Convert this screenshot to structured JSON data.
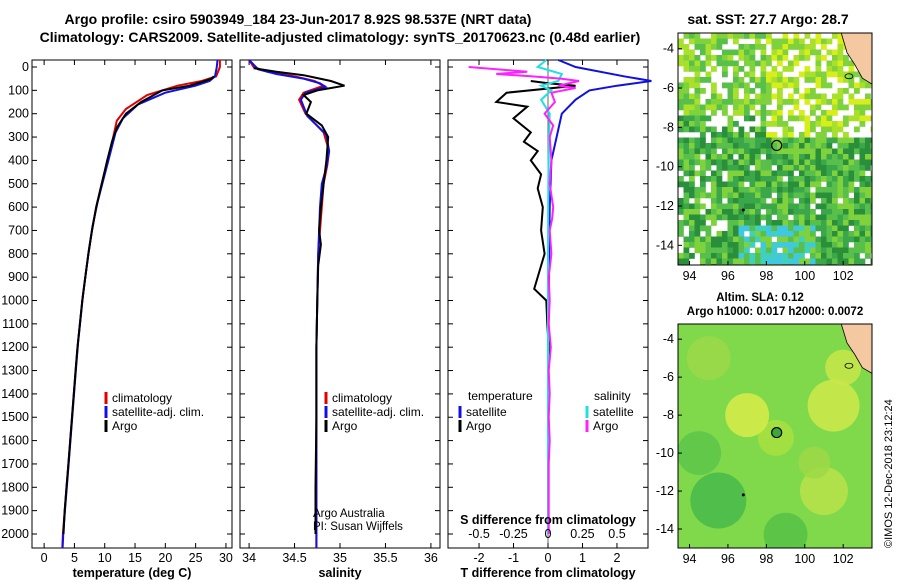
{
  "title_line1": "Argo profile: csiro 5903949_184 23-Jun-2017 8.92S 98.537E (NRT data)",
  "title_line2": "Climatology: CARS2009. Satellite-adjusted climatology: synTS_20170623.nc (0.48d earlier)",
  "colors": {
    "climatology": "#e00000",
    "satellite": "#1010e0",
    "argo": "#000000",
    "sat_salinity": "#20e0e0",
    "argo_salinity": "#ff20ff"
  },
  "chart_data": [
    {
      "type": "line",
      "name": "temperature-profile",
      "xlabel": "temperature (deg C)",
      "xlim": [
        -2,
        31
      ],
      "ylim": [
        2060,
        -30
      ],
      "xticks": [
        0,
        5,
        10,
        15,
        20,
        25,
        30
      ],
      "yticks": [
        0,
        100,
        200,
        300,
        400,
        500,
        600,
        700,
        800,
        900,
        1000,
        1100,
        1200,
        1300,
        1400,
        1500,
        1600,
        1700,
        1800,
        1900,
        2000
      ],
      "legend": [
        "climatology",
        "satellite-adj. clim.",
        "Argo"
      ],
      "series": [
        {
          "name": "climatology",
          "color_key": "climatology",
          "points": [
            [
              29,
              -30
            ],
            [
              29,
              0
            ],
            [
              28.4,
              40
            ],
            [
              26,
              60
            ],
            [
              22,
              80
            ],
            [
              17,
              120
            ],
            [
              13.5,
              180
            ],
            [
              12,
              230
            ],
            [
              11.4,
              300
            ],
            [
              10.5,
              400
            ],
            [
              9.5,
              500
            ],
            [
              8.6,
              600
            ],
            [
              7.9,
              700
            ],
            [
              7.3,
              800
            ],
            [
              6.8,
              900
            ],
            [
              6.3,
              1000
            ],
            [
              5.9,
              1100
            ],
            [
              5.5,
              1200
            ],
            [
              5.2,
              1300
            ],
            [
              4.9,
              1400
            ],
            [
              4.6,
              1500
            ],
            [
              4.3,
              1600
            ],
            [
              4.0,
              1700
            ],
            [
              3.7,
              1800
            ],
            [
              3.4,
              1900
            ],
            [
              3.1,
              2000
            ],
            [
              3.0,
              2060
            ]
          ]
        },
        {
          "name": "satellite-adj. clim.",
          "color_key": "satellite",
          "points": [
            [
              28.6,
              -30
            ],
            [
              28.5,
              0
            ],
            [
              28.2,
              40
            ],
            [
              27.3,
              60
            ],
            [
              25,
              80
            ],
            [
              20,
              110
            ],
            [
              15.5,
              160
            ],
            [
              13,
              220
            ],
            [
              11.8,
              280
            ],
            [
              10.8,
              380
            ],
            [
              9.8,
              480
            ],
            [
              8.8,
              580
            ],
            [
              8,
              680
            ],
            [
              7.4,
              780
            ],
            [
              6.9,
              880
            ],
            [
              6.4,
              980
            ],
            [
              6,
              1080
            ],
            [
              5.6,
              1180
            ],
            [
              5.3,
              1280
            ],
            [
              5,
              1380
            ],
            [
              4.7,
              1480
            ],
            [
              4.4,
              1580
            ],
            [
              4.1,
              1680
            ],
            [
              3.8,
              1780
            ],
            [
              3.5,
              1880
            ],
            [
              3.2,
              1980
            ],
            [
              3.05,
              2060
            ]
          ]
        },
        {
          "name": "Argo",
          "color_key": "argo",
          "points": [
            [
              28,
              40
            ],
            [
              27.6,
              50
            ],
            [
              26.5,
              60
            ],
            [
              24,
              80
            ],
            [
              19.5,
              100
            ],
            [
              16,
              150
            ],
            [
              13.5,
              200
            ],
            [
              12,
              260
            ],
            [
              11.2,
              320
            ],
            [
              10.4,
              400
            ],
            [
              9.5,
              500
            ],
            [
              8.6,
              600
            ],
            [
              7.9,
              700
            ],
            [
              7.3,
              800
            ],
            [
              6.8,
              900
            ],
            [
              6.3,
              1000
            ],
            [
              5.9,
              1100
            ],
            [
              5.5,
              1200
            ],
            [
              5.2,
              1300
            ],
            [
              4.9,
              1400
            ],
            [
              4.6,
              1500
            ],
            [
              4.3,
              1600
            ],
            [
              4.0,
              1700
            ],
            [
              3.7,
              1800
            ],
            [
              3.4,
              1900
            ],
            [
              3.2,
              2000
            ]
          ]
        }
      ]
    },
    {
      "type": "line",
      "name": "salinity-profile",
      "xlabel": "salinity",
      "xlim": [
        33.9,
        36.1
      ],
      "ylim": [
        2060,
        -30
      ],
      "xticks": [
        34,
        34.5,
        35,
        35.5,
        36
      ],
      "legend": [
        "climatology",
        "satellite-adj. clim.",
        "Argo"
      ],
      "annotation": [
        "Argo Australia",
        "PI: Susan Wijffels"
      ],
      "series": [
        {
          "name": "climatology",
          "color_key": "climatology",
          "points": [
            [
              34,
              -30
            ],
            [
              34.05,
              0
            ],
            [
              34.2,
              20
            ],
            [
              34.5,
              40
            ],
            [
              34.72,
              60
            ],
            [
              34.82,
              80
            ],
            [
              34.6,
              110
            ],
            [
              34.55,
              140
            ],
            [
              34.62,
              200
            ],
            [
              34.82,
              280
            ],
            [
              34.88,
              360
            ],
            [
              34.86,
              420
            ],
            [
              34.82,
              500
            ],
            [
              34.8,
              600
            ],
            [
              34.78,
              700
            ],
            [
              34.76,
              800
            ],
            [
              34.75,
              1000
            ],
            [
              34.74,
              1200
            ],
            [
              34.74,
              1500
            ],
            [
              34.74,
              1800
            ],
            [
              34.74,
              2060
            ]
          ]
        },
        {
          "name": "satellite-adj. clim.",
          "color_key": "satellite",
          "points": [
            [
              34.0,
              -30
            ],
            [
              34.1,
              10
            ],
            [
              34.3,
              30
            ],
            [
              34.6,
              50
            ],
            [
              34.78,
              70
            ],
            [
              34.84,
              85
            ],
            [
              34.62,
              110
            ],
            [
              34.57,
              140
            ],
            [
              34.64,
              210
            ],
            [
              34.85,
              290
            ],
            [
              34.88,
              360
            ],
            [
              34.85,
              430
            ],
            [
              34.8,
              500
            ],
            [
              34.78,
              600
            ],
            [
              34.77,
              700
            ],
            [
              34.76,
              800
            ],
            [
              34.75,
              1000
            ],
            [
              34.74,
              1200
            ],
            [
              34.74,
              1500
            ],
            [
              34.74,
              1800
            ],
            [
              34.74,
              2060
            ]
          ]
        },
        {
          "name": "Argo",
          "color_key": "argo",
          "points": [
            [
              34.05,
              5
            ],
            [
              34.3,
              20
            ],
            [
              34.6,
              35
            ],
            [
              34.72,
              45
            ],
            [
              34.9,
              60
            ],
            [
              35.05,
              80
            ],
            [
              34.75,
              100
            ],
            [
              34.6,
              120
            ],
            [
              34.68,
              150
            ],
            [
              34.63,
              200
            ],
            [
              34.8,
              250
            ],
            [
              34.87,
              300
            ],
            [
              34.85,
              400
            ],
            [
              34.82,
              500
            ],
            [
              34.79,
              600
            ],
            [
              34.77,
              700
            ],
            [
              34.79,
              760
            ],
            [
              34.76,
              850
            ],
            [
              34.75,
              1000
            ],
            [
              34.74,
              1200
            ],
            [
              34.74,
              1500
            ],
            [
              34.73,
              1800
            ],
            [
              34.73,
              2000
            ]
          ]
        }
      ]
    },
    {
      "type": "line",
      "name": "difference-profile",
      "xlabel": "T difference from climatology",
      "xlabel_top": "S difference from climatology",
      "xlim": [
        -2.9,
        2.9
      ],
      "ylim": [
        2060,
        -30
      ],
      "xticks": [
        -2,
        -1,
        0,
        1,
        2
      ],
      "xticks_top": [
        "-0.5",
        "-0.25",
        "0",
        "0.25",
        "0.5"
      ],
      "xticks_top_values": [
        -0.5,
        -0.25,
        0,
        0.25,
        0.5
      ],
      "legend_left_title": "temperature",
      "legend_right_title": "salinity",
      "legend": [
        "satellite",
        "Argo"
      ],
      "series": [
        {
          "name": "T satellite",
          "color_key": "satellite",
          "points": [
            [
              0.3,
              -30
            ],
            [
              0.8,
              0
            ],
            [
              2.2,
              40
            ],
            [
              3,
              60
            ],
            [
              2,
              80
            ],
            [
              1.2,
              100
            ],
            [
              0.8,
              140
            ],
            [
              0.4,
              200
            ],
            [
              0.25,
              300
            ],
            [
              0.1,
              400
            ],
            [
              0.05,
              600
            ],
            [
              0.02,
              1000
            ],
            [
              0,
              1500
            ],
            [
              0,
              2000
            ]
          ]
        },
        {
          "name": "T Argo",
          "color_key": "argo",
          "points": [
            [
              -0.5,
              60
            ],
            [
              0,
              70
            ],
            [
              0.8,
              80
            ],
            [
              -1.2,
              110
            ],
            [
              -1.5,
              150
            ],
            [
              -0.6,
              170
            ],
            [
              -1,
              220
            ],
            [
              -0.5,
              280
            ],
            [
              -0.7,
              320
            ],
            [
              -0.3,
              360
            ],
            [
              -0.5,
              400
            ],
            [
              -0.2,
              460
            ],
            [
              -0.3,
              520
            ],
            [
              -0.15,
              600
            ],
            [
              -0.2,
              700
            ],
            [
              -0.1,
              800
            ],
            [
              -0.3,
              900
            ],
            [
              -0.4,
              950
            ],
            [
              -0.05,
              1000
            ],
            [
              -0.02,
              1100
            ],
            [
              0.02,
              1200
            ],
            [
              0,
              1300
            ],
            [
              0,
              1500
            ],
            [
              0,
              1700
            ],
            [
              0,
              2000
            ]
          ]
        },
        {
          "name": "S satellite",
          "color_key": "sat_salinity",
          "points": [
            [
              -0.05,
              -30
            ],
            [
              -0.3,
              0
            ],
            [
              0.4,
              30
            ],
            [
              0.3,
              60
            ],
            [
              -0.2,
              80
            ],
            [
              0.1,
              100
            ],
            [
              -0.2,
              140
            ],
            [
              0.05,
              200
            ],
            [
              0.03,
              300
            ],
            [
              0.01,
              500
            ],
            [
              0,
              800
            ],
            [
              0,
              1200
            ],
            [
              0,
              2000
            ]
          ]
        },
        {
          "name": "S Argo",
          "color_key": "argo_salinity",
          "points": [
            [
              -2.3,
              0
            ],
            [
              -0.6,
              20
            ],
            [
              -1.5,
              30
            ],
            [
              -0.5,
              40
            ],
            [
              0.4,
              50
            ],
            [
              0.9,
              60
            ],
            [
              0.3,
              80
            ],
            [
              0.8,
              90
            ],
            [
              0.1,
              110
            ],
            [
              0.2,
              150
            ],
            [
              -0.1,
              200
            ],
            [
              0.15,
              250
            ],
            [
              0.05,
              300
            ],
            [
              0.1,
              400
            ],
            [
              0.05,
              500
            ],
            [
              0.15,
              600
            ],
            [
              0.12,
              650
            ],
            [
              0.05,
              700
            ],
            [
              0.1,
              800
            ],
            [
              0.02,
              900
            ],
            [
              0.05,
              1000
            ],
            [
              0.02,
              1100
            ],
            [
              0.08,
              1200
            ],
            [
              0.02,
              1300
            ],
            [
              0.05,
              1400
            ],
            [
              0.02,
              1500
            ],
            [
              0.05,
              1600
            ],
            [
              0.02,
              1700
            ],
            [
              0.02,
              2000
            ]
          ]
        }
      ]
    },
    {
      "type": "heatmap",
      "name": "sst-map",
      "title": "sat. SST: 27.7 Argo: 28.7",
      "xlim": [
        93.4,
        103.5
      ],
      "ylim": [
        -15,
        -3.2
      ],
      "xticks": [
        94,
        96,
        98,
        100,
        102
      ],
      "yticks": [
        -4,
        -6,
        -8,
        -10,
        -12,
        -14
      ],
      "marker": {
        "lon": 98.537,
        "lat": -8.92
      }
    },
    {
      "type": "heatmap",
      "name": "sla-map",
      "title": "Altim. SLA: 0.12",
      "subtitle": "Argo h1000: 0.017 h2000: 0.0072",
      "xlim": [
        93.4,
        103.5
      ],
      "ylim": [
        -15,
        -3.2
      ],
      "xticks": [
        94,
        96,
        98,
        100,
        102
      ],
      "yticks": [
        -4,
        -6,
        -8,
        -10,
        -12,
        -14
      ],
      "marker": {
        "lon": 98.537,
        "lat": -8.92
      }
    }
  ],
  "credit": "©IMOS 12-Dec-2018 23:12:24"
}
